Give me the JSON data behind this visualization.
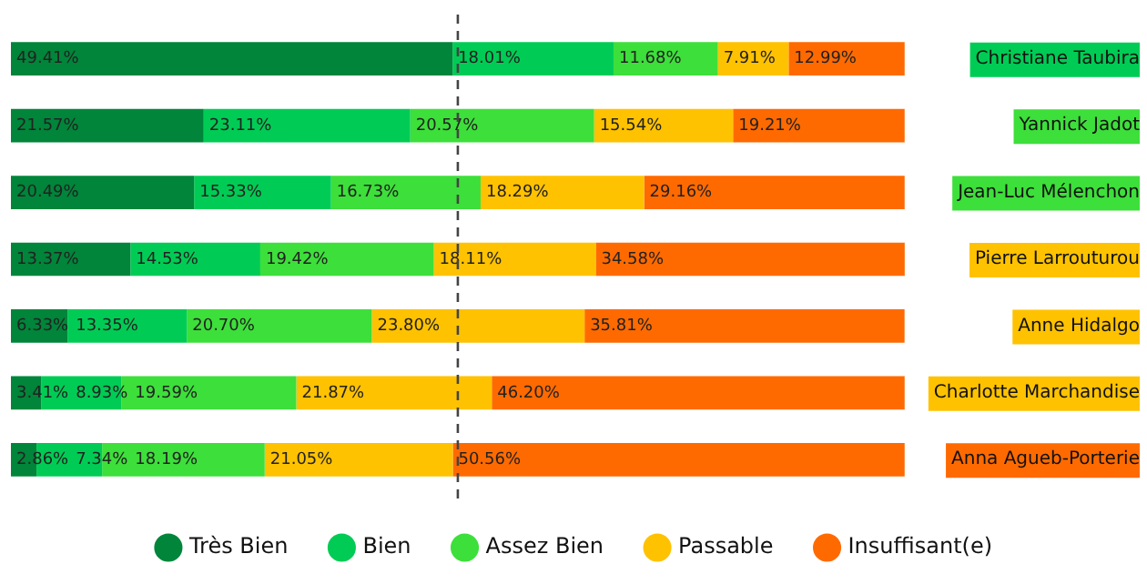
{
  "chart_data": {
    "type": "bar",
    "orientation": "horizontal",
    "stacked": true,
    "categories": [
      "Christiane Taubira",
      "Yannick Jadot",
      "Jean-Luc Mélenchon",
      "Pierre Larrouturou",
      "Anne Hidalgo",
      "Charlotte Marchandise",
      "Anna Agueb-Porterie"
    ],
    "series": [
      {
        "name": "Très Bien",
        "color": "#00853a",
        "values": [
          49.41,
          21.57,
          20.49,
          13.37,
          6.33,
          3.41,
          2.86
        ],
        "value_labels": [
          "49.41%",
          "21.57%",
          "20.49%",
          "13.37%",
          "6.33%",
          "3.41%",
          "2.86%"
        ]
      },
      {
        "name": "Bien",
        "color": "#00cc55",
        "values": [
          18.01,
          23.11,
          15.33,
          14.53,
          13.35,
          8.93,
          7.34
        ],
        "value_labels": [
          "18.01%",
          "23.11%",
          "15.33%",
          "14.53%",
          "13.35%",
          "8.93%",
          "7.34%"
        ]
      },
      {
        "name": "Assez Bien",
        "color": "#3ddf3a",
        "values": [
          11.68,
          20.57,
          16.73,
          19.42,
          20.7,
          19.59,
          18.19
        ],
        "value_labels": [
          "11.68%",
          "20.57%",
          "16.73%",
          "19.42%",
          "20.70%",
          "19.59%",
          "18.19%"
        ]
      },
      {
        "name": "Passable",
        "color": "#ffc200",
        "values": [
          7.91,
          15.54,
          18.29,
          18.11,
          23.8,
          21.87,
          21.05
        ],
        "value_labels": [
          "7.91%",
          "15.54%",
          "18.29%",
          "18.11%",
          "23.80%",
          "21.87%",
          "21.05%"
        ]
      },
      {
        "name": "Insuffisant(e)",
        "color": "#ff6a00",
        "values": [
          12.99,
          19.21,
          29.16,
          34.58,
          35.81,
          46.2,
          50.56
        ],
        "value_labels": [
          "12.99%",
          "19.21%",
          "29.16%",
          "34.58%",
          "35.81%",
          "46.20%",
          "50.56%"
        ]
      }
    ],
    "xlim": [
      0,
      100
    ],
    "ref_lines": [
      {
        "axis": "x",
        "value": 50,
        "line_style": "dashed",
        "color": "#444444"
      }
    ],
    "tick_labels": "y",
    "grid": false,
    "legend": "bottom"
  }
}
